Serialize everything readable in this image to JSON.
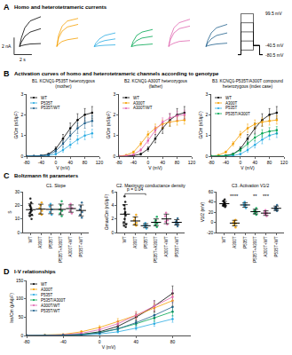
{
  "chart_data": [
    {
      "type": "line",
      "panel": "A",
      "title": "Homo and heterotetrameric currents",
      "marker": "none",
      "tick_labels": false,
      "xlim": [
        -0.8,
        3.0
      ],
      "ylim": [
        -1.2,
        4
      ],
      "t": [
        0,
        0.2,
        0.6,
        1.2,
        2.4
      ],
      "series": [
        {
          "color": "#000000",
          "traces": [
            [
              0,
              0.1,
              0.2,
              0.3,
              0.35
            ],
            [
              0,
              0.5,
              1.2,
              1.7,
              2.1
            ],
            [
              0,
              1.0,
              2.2,
              3.0,
              3.5
            ]
          ]
        },
        {
          "color": "#f5a000",
          "traces": [
            [
              0,
              0.3,
              0.6,
              0.8,
              1.0
            ],
            [
              0,
              1.0,
              1.8,
              2.3,
              2.6
            ],
            [
              0,
              1.3,
              2.4,
              3.0,
              3.3
            ]
          ]
        },
        {
          "color": "#29abe2",
          "traces": [
            [
              0,
              0.05,
              0.1,
              0.15,
              0.2
            ],
            [
              0,
              0.2,
              0.5,
              0.7,
              0.9
            ],
            [
              0,
              0.4,
              0.9,
              1.3,
              1.6
            ]
          ]
        },
        {
          "color": "#00a651",
          "traces": [
            [
              0,
              0.05,
              0.15,
              0.2,
              0.3
            ],
            [
              0,
              0.3,
              0.7,
              1.0,
              1.2
            ],
            [
              0,
              0.6,
              1.3,
              1.7,
              2.0
            ]
          ]
        },
        {
          "color": "#e066b0",
          "traces": [
            [
              0,
              0.2,
              0.4,
              0.6,
              0.7
            ],
            [
              0,
              0.8,
              1.6,
              2.1,
              2.4
            ],
            [
              0,
              1.1,
              2.2,
              2.8,
              3.2
            ]
          ]
        },
        {
          "color": "#1f5f8b",
          "traces": [
            [
              0,
              0.1,
              0.2,
              0.3,
              0.4
            ],
            [
              0,
              0.4,
              0.9,
              1.3,
              1.6
            ],
            [
              0,
              0.7,
              1.6,
              2.2,
              2.6
            ]
          ]
        }
      ],
      "scale_bar": {
        "current": 2,
        "time": 2,
        "current_label": "2 nA",
        "time_label": "2 s"
      },
      "protocol": {
        "t": [
          0,
          0.5,
          2.5,
          3.5,
          4
        ],
        "xlim": [
          0,
          4
        ],
        "ylim": [
          -90,
          105
        ],
        "holding": -80.5,
        "tail": -40.5,
        "steps": [
          -60.5,
          -20.5,
          19.5,
          59.5,
          99.5
        ],
        "levels": [
          {
            "value": 99.5,
            "label": "99.5 mV"
          },
          {
            "value": -40.5,
            "label": "-40.5 mV"
          },
          {
            "value": -80.5,
            "label": "-80.5 mV"
          }
        ]
      }
    },
    {
      "type": "line",
      "panel": "B",
      "title": "Activation curves of homo and heterotetrameric channels according to genotype",
      "subtitle": [
        "B1. KCNQ1-P535T heterozygous",
        "(mother)"
      ],
      "marker": "circle",
      "xlabel": "V (mV)",
      "ylabel": "G/Cm (nS/pF)",
      "xlim": [
        -80,
        120
      ],
      "xticks": [
        -80,
        -40,
        0,
        40,
        80,
        120
      ],
      "ylim": [
        0,
        3
      ],
      "yticks": [
        0,
        1,
        2,
        3
      ],
      "x": [
        -80,
        -60,
        -40,
        -20,
        0,
        20,
        40,
        60,
        80,
        100
      ],
      "series": [
        {
          "name": "WT",
          "color": "#000000",
          "values": [
            0,
            0.01,
            0.03,
            0.1,
            0.35,
            0.85,
            1.35,
            1.75,
            2.0,
            2.1
          ],
          "errors": [
            0,
            0.01,
            0.02,
            0.05,
            0.1,
            0.2,
            0.25,
            0.3,
            0.3,
            0.3
          ]
        },
        {
          "name": "P535T",
          "color": "#29abe2",
          "values": [
            0,
            0,
            0.01,
            0.03,
            0.1,
            0.3,
            0.55,
            0.8,
            1.0,
            1.1
          ],
          "errors": [
            0,
            0,
            0.01,
            0.02,
            0.05,
            0.1,
            0.15,
            0.2,
            0.2,
            0.2
          ]
        },
        {
          "name": "P535T/WT",
          "color": "#1f5f8b",
          "values": [
            0,
            0,
            0.02,
            0.06,
            0.25,
            0.6,
            1.0,
            1.35,
            1.6,
            1.7
          ],
          "errors": [
            0,
            0,
            0.01,
            0.03,
            0.08,
            0.15,
            0.2,
            0.25,
            0.25,
            0.25
          ]
        }
      ]
    },
    {
      "type": "line",
      "subtitle": [
        "B2. KCNQ1-A300T heterozygous",
        "(father)"
      ],
      "marker": "circle",
      "xlabel": "V (mV)",
      "ylabel": "G/Cm (nS/pF)",
      "xlim": [
        -80,
        120
      ],
      "xticks": [
        -80,
        -40,
        0,
        40,
        80,
        120
      ],
      "ylim": [
        0,
        3
      ],
      "yticks": [
        0,
        1,
        2,
        3
      ],
      "x": [
        -80,
        -60,
        -40,
        -20,
        0,
        20,
        40,
        60,
        80,
        100
      ],
      "series": [
        {
          "name": "WT",
          "color": "#000000",
          "values": [
            0,
            0.01,
            0.03,
            0.1,
            0.35,
            0.85,
            1.35,
            1.75,
            2.0,
            2.1
          ],
          "errors": [
            0,
            0.01,
            0.02,
            0.05,
            0.1,
            0.2,
            0.25,
            0.3,
            0.3,
            0.3
          ]
        },
        {
          "name": "A300T",
          "color": "#f5a000",
          "values": [
            0,
            0.05,
            0.2,
            0.6,
            1.05,
            1.35,
            1.55,
            1.65,
            1.7,
            1.75
          ],
          "errors": [
            0,
            0.02,
            0.05,
            0.1,
            0.15,
            0.2,
            0.2,
            0.2,
            0.2,
            0.2
          ]
        },
        {
          "name": "A300T/WT",
          "color": "#e066b0",
          "values": [
            0,
            0.02,
            0.08,
            0.3,
            0.75,
            1.25,
            1.65,
            1.85,
            1.95,
            2.0
          ],
          "errors": [
            0,
            0.01,
            0.03,
            0.08,
            0.12,
            0.18,
            0.2,
            0.22,
            0.22,
            0.22
          ]
        }
      ]
    },
    {
      "type": "line",
      "subtitle": [
        "B3. KCNQ1-P535T/A300T compound",
        "heterozygous (index case)"
      ],
      "marker": "circle",
      "xlabel": "V (mV)",
      "ylabel": "G/Cm (nS/pF)",
      "xlim": [
        -80,
        120
      ],
      "xticks": [
        -80,
        -40,
        0,
        40,
        80,
        120
      ],
      "ylim": [
        0,
        3
      ],
      "yticks": [
        0,
        1,
        2,
        3
      ],
      "x": [
        -80,
        -60,
        -40,
        -20,
        0,
        20,
        40,
        60,
        80,
        100
      ],
      "series": [
        {
          "name": "WT",
          "color": "#000000",
          "values": [
            0,
            0.01,
            0.03,
            0.1,
            0.35,
            0.85,
            1.35,
            1.75,
            2.0,
            2.1
          ],
          "errors": [
            0,
            0.01,
            0.02,
            0.05,
            0.1,
            0.2,
            0.25,
            0.3,
            0.3,
            0.3
          ]
        },
        {
          "name": "A300T",
          "color": "#f5a000",
          "values": [
            0,
            0.05,
            0.2,
            0.6,
            1.05,
            1.35,
            1.55,
            1.65,
            1.7,
            1.75
          ],
          "errors": [
            0,
            0.02,
            0.05,
            0.1,
            0.15,
            0.2,
            0.2,
            0.2,
            0.2,
            0.2
          ]
        },
        {
          "name": "P535T",
          "color": "#29abe2",
          "values": [
            0,
            0,
            0.01,
            0.03,
            0.1,
            0.3,
            0.55,
            0.8,
            1.0,
            1.1
          ],
          "errors": [
            0,
            0,
            0.01,
            0.02,
            0.05,
            0.1,
            0.15,
            0.2,
            0.2,
            0.2
          ]
        },
        {
          "name": "P535T/A300T",
          "color": "#00a651",
          "values": [
            0,
            0,
            0.02,
            0.1,
            0.3,
            0.6,
            0.9,
            1.1,
            1.2,
            1.25
          ],
          "errors": [
            0,
            0,
            0.01,
            0.04,
            0.08,
            0.12,
            0.15,
            0.18,
            0.18,
            0.18
          ]
        }
      ]
    },
    {
      "type": "scatter",
      "panel": "C",
      "title": "Boltzmann fit parameters",
      "subtitle": "C1. Slope",
      "ylabel": "S",
      "ylim": [
        0,
        30
      ],
      "yticks": [
        0,
        10,
        20,
        30
      ],
      "categories": [
        "WT",
        "A300T",
        "P535T",
        "P535T+A300T",
        "A300T+WT",
        "P535T+WT"
      ],
      "colors": [
        "#000000",
        "#f5a000",
        "#29abe2",
        "#00a651",
        "#e066b0",
        "#1f5f8b"
      ],
      "points": [
        [
          12,
          14,
          15,
          16,
          18,
          20,
          22,
          10,
          13,
          17,
          19,
          25
        ],
        [
          14,
          16,
          18,
          20,
          22,
          13
        ],
        [
          13,
          15,
          17,
          19,
          21
        ],
        [
          12,
          14,
          16,
          17,
          20,
          23
        ],
        [
          14,
          16,
          18,
          19,
          21
        ],
        [
          11,
          13,
          15,
          17,
          19,
          22
        ]
      ],
      "means": [
        16.8,
        17.2,
        17,
        17,
        17.6,
        16.2
      ],
      "sd": [
        4.3,
        3.6,
        3.2,
        3.9,
        2.7,
        4
      ]
    },
    {
      "type": "scatter",
      "subtitle": "C2. Maximum conductance density",
      "ylabel": "Gmax/Cm (nS/pF)",
      "ylim": [
        0,
        6
      ],
      "yticks": [
        0,
        2,
        4,
        6
      ],
      "categories": [
        "WT",
        "A300T",
        "P535T",
        "P535T+A300T",
        "A300T+WT",
        "P535T+WT"
      ],
      "colors": [
        "#000000",
        "#f5a000",
        "#29abe2",
        "#00a651",
        "#e066b0",
        "#1f5f8b"
      ],
      "points": [
        [
          0.8,
          1.2,
          1.5,
          2,
          2.5,
          3,
          3.5,
          4,
          4.5,
          5.3,
          1,
          2.8
        ],
        [
          1,
          1.4,
          1.8,
          2.2,
          2.6,
          1.2
        ],
        [
          0.6,
          0.9,
          1.1,
          1.4,
          1.0
        ],
        [
          0.8,
          1.3,
          1.8,
          2.3,
          1.5,
          1.1
        ],
        [
          1.2,
          1.8,
          2.4,
          2.9,
          1.6
        ],
        [
          0.9,
          1.3,
          1.7,
          2.1,
          1.2,
          1.5
        ]
      ],
      "means": [
        2.7,
        1.7,
        1.0,
        1.5,
        2.0,
        1.5
      ],
      "sd": [
        1.4,
        0.6,
        0.3,
        0.5,
        0.7,
        0.4
      ],
      "bracket": {
        "from": "WT",
        "to": "P535T",
        "y": 5.7,
        "text": "p = 0.04"
      }
    },
    {
      "type": "scatter",
      "subtitle": "C3. Activation V1/2",
      "ylabel": "V1/2 (mV)",
      "ylim": [
        -20,
        60
      ],
      "yticks": [
        -20,
        0,
        20,
        40,
        60
      ],
      "categories": [
        "WT",
        "A300T",
        "P535T",
        "P535T+A300T",
        "A300T+WT",
        "P535T+WT"
      ],
      "colors": [
        "#000000",
        "#f5a000",
        "#29abe2",
        "#00a651",
        "#e066b0",
        "#1f5f8b"
      ],
      "points": [
        [
          30,
          32,
          34,
          36,
          38,
          40,
          42,
          35,
          33,
          37,
          45
        ],
        [
          -10,
          -5,
          0,
          3,
          5,
          -2
        ],
        [
          28,
          32,
          36,
          40,
          34
        ],
        [
          15,
          20,
          24,
          28,
          22,
          18
        ],
        [
          12,
          16,
          20,
          24,
          18
        ],
        [
          22,
          26,
          30,
          34,
          28,
          25
        ]
      ],
      "means": [
        36.5,
        -1.5,
        34,
        21,
        18,
        27.5
      ],
      "sd": [
        4.4,
        5.4,
        4.5,
        4.6,
        4.5,
        4.3
      ],
      "annotations": [
        {
          "category": "A300T",
          "y": 52,
          "text": "****"
        },
        {
          "category": "P535T+A300T",
          "y": 52,
          "text": "**"
        },
        {
          "category": "A300T+WT",
          "y": 52,
          "text": "***"
        }
      ]
    },
    {
      "type": "line",
      "panel": "D",
      "title": "I-V relationships",
      "marker": "circle",
      "xlabel": "V (mV)",
      "ylabel": "Iss/Cm (pA/pF)",
      "xlim": [
        -80,
        100
      ],
      "xticks": [
        -80,
        -40,
        0,
        40,
        80
      ],
      "ylim": [
        0,
        150
      ],
      "yticks": [
        0,
        50,
        100,
        150
      ],
      "x": [
        -80,
        -60,
        -40,
        -20,
        0,
        20,
        40,
        60,
        80
      ],
      "series": [
        {
          "name": "WT",
          "color": "#000000",
          "values": [
            0,
            0,
            1,
            3,
            10,
            25,
            50,
            80,
            115
          ],
          "errors": [
            0,
            0,
            0.5,
            1,
            3,
            6,
            10,
            15,
            20
          ]
        },
        {
          "name": "A300T",
          "color": "#f5a000",
          "values": [
            0,
            1,
            3,
            10,
            22,
            38,
            55,
            75,
            95
          ],
          "errors": [
            0,
            0.5,
            1,
            3,
            5,
            8,
            10,
            12,
            15
          ]
        },
        {
          "name": "P535T",
          "color": "#29abe2",
          "values": [
            0,
            0,
            0,
            1,
            4,
            10,
            20,
            32,
            45
          ],
          "errors": [
            0,
            0,
            0,
            0.5,
            1,
            3,
            5,
            7,
            9
          ]
        },
        {
          "name": "P535T/A300T",
          "color": "#00a651",
          "values": [
            0,
            0,
            1,
            3,
            8,
            18,
            32,
            48,
            65
          ],
          "errors": [
            0,
            0,
            0.5,
            1,
            2,
            4,
            6,
            9,
            12
          ]
        },
        {
          "name": "A300T/WT",
          "color": "#e066b0",
          "values": [
            0,
            0,
            2,
            6,
            16,
            32,
            55,
            80,
            105
          ],
          "errors": [
            0,
            0,
            1,
            2,
            4,
            7,
            10,
            14,
            18
          ]
        },
        {
          "name": "P535T/WT",
          "color": "#1f5f8b",
          "values": [
            0,
            0,
            1,
            2,
            7,
            18,
            35,
            55,
            78
          ],
          "errors": [
            0,
            0,
            0.5,
            1,
            2,
            4,
            7,
            10,
            13
          ]
        }
      ]
    }
  ]
}
